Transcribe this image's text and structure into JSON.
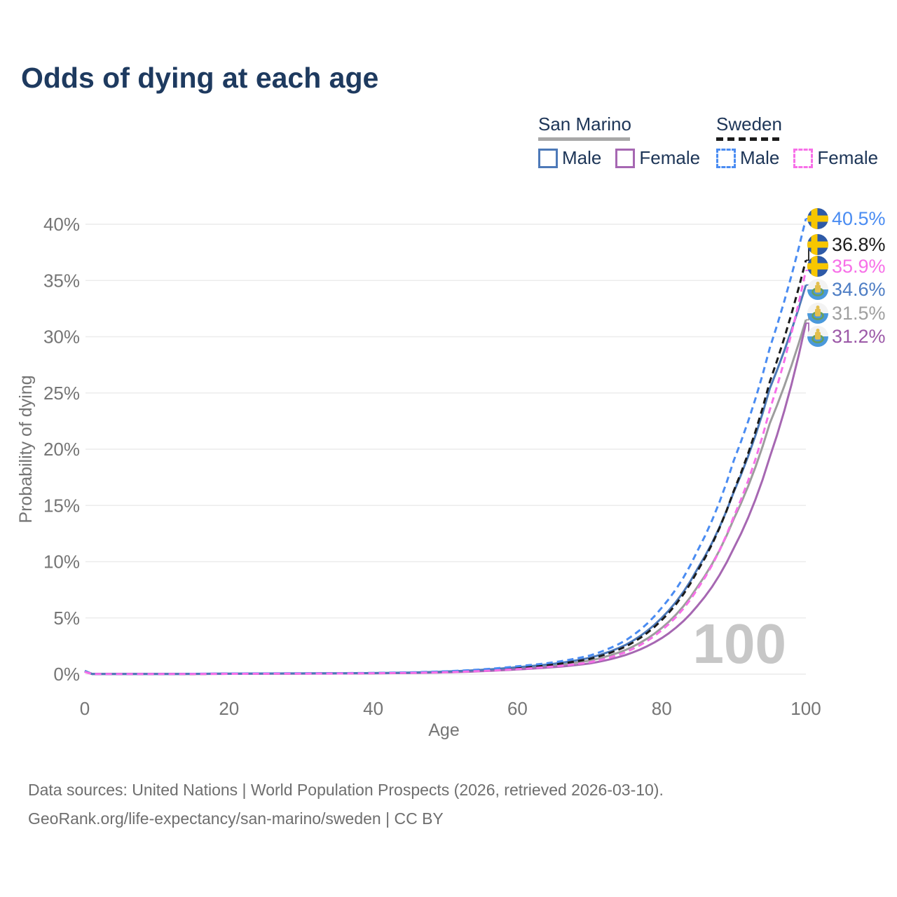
{
  "title": "Odds of dying at each age",
  "legend": {
    "groups": [
      {
        "name": "San Marino",
        "key": "sm-both",
        "line_style": "solid",
        "items": [
          {
            "label": "Male",
            "key": "sm-male"
          },
          {
            "label": "Female",
            "key": "sm-female"
          }
        ]
      },
      {
        "name": "Sweden",
        "key": "swe-both",
        "line_style": "dashed",
        "items": [
          {
            "label": "Male",
            "key": "swe-male"
          },
          {
            "label": "Female",
            "key": "swe-female"
          }
        ]
      }
    ]
  },
  "footer": {
    "line1": "Data sources: United Nations | World Population Prospects (2026, retrieved 2026-03-10).",
    "line2": "GeoRank.org/life-expectancy/san-marino/sweden | CC BY"
  },
  "chart_data": {
    "type": "line",
    "title": "Odds of dying at each age",
    "xlabel": "Age",
    "ylabel": "Probability of dying",
    "xlim": [
      0,
      100
    ],
    "ylim_pct": [
      0,
      40
    ],
    "x_ticks": [
      "0",
      "20",
      "40",
      "60",
      "80",
      "100"
    ],
    "x_tick_values": [
      0,
      20,
      40,
      60,
      80,
      100
    ],
    "y_ticks": [
      "0%",
      "5%",
      "10%",
      "15%",
      "20%",
      "25%",
      "30%",
      "35%",
      "40%"
    ],
    "y_tick_values": [
      0,
      5,
      10,
      15,
      20,
      25,
      30,
      35,
      40
    ],
    "grid": "horizontal-only",
    "age_ticker_watermark": "100",
    "x": [
      0,
      1,
      5,
      10,
      15,
      20,
      25,
      30,
      35,
      40,
      45,
      50,
      55,
      60,
      65,
      70,
      75,
      80,
      85,
      90,
      95,
      100
    ],
    "series": [
      {
        "key": "sm-both",
        "name": "San Marino",
        "sex": "Both sexes",
        "color": "#9d9d9d",
        "dashed": false,
        "end_label": "31.5%",
        "label_color": "#a0a0a0",
        "flag": "san-marino",
        "final_value_pct": 31.5,
        "values_pct": [
          0.28,
          0.02,
          0.01,
          0.01,
          0.02,
          0.04,
          0.05,
          0.06,
          0.07,
          0.09,
          0.12,
          0.19,
          0.32,
          0.52,
          0.78,
          1.2,
          2.15,
          4.1,
          7.8,
          13.8,
          22.3,
          31.5
        ]
      },
      {
        "key": "sm-female",
        "name": "San Marino",
        "sex": "Female",
        "color": "#a667b2",
        "dashed": false,
        "end_label": "31.2%",
        "label_color": "#9c59a8",
        "flag": "san-marino",
        "final_value_pct": 31.2,
        "values_pct": [
          0.25,
          0.02,
          0.01,
          0.01,
          0.02,
          0.03,
          0.04,
          0.05,
          0.06,
          0.08,
          0.1,
          0.16,
          0.26,
          0.42,
          0.62,
          0.95,
          1.7,
          3.2,
          6.1,
          11.2,
          19.3,
          31.2
        ]
      },
      {
        "key": "sm-male",
        "name": "San Marino",
        "sex": "Male",
        "color": "#4d79b8",
        "dashed": false,
        "end_label": "34.6%",
        "label_color": "#4d7dc4",
        "flag": "san-marino",
        "final_value_pct": 34.6,
        "values_pct": [
          0.3,
          0.02,
          0.01,
          0.01,
          0.03,
          0.05,
          0.06,
          0.07,
          0.08,
          0.1,
          0.14,
          0.23,
          0.38,
          0.62,
          0.92,
          1.45,
          2.6,
          5.0,
          9.4,
          16.2,
          25.4,
          34.6
        ]
      },
      {
        "key": "swe-both",
        "name": "Sweden",
        "sex": "Both sexes",
        "color": "#1c1c1c",
        "dashed": true,
        "end_label": "36.8%",
        "label_color": "#1c1c1c",
        "flag": "sweden",
        "final_value_pct": 36.8,
        "values_pct": [
          0.22,
          0.02,
          0.01,
          0.01,
          0.02,
          0.04,
          0.05,
          0.06,
          0.07,
          0.09,
          0.13,
          0.21,
          0.35,
          0.56,
          0.85,
          1.35,
          2.45,
          4.8,
          9.2,
          16.3,
          26.0,
          36.8
        ]
      },
      {
        "key": "swe-male",
        "name": "Sweden",
        "sex": "Male",
        "color": "#4a8cf2",
        "dashed": true,
        "end_label": "40.5%",
        "label_color": "#4a8cf2",
        "flag": "sweden",
        "final_value_pct": 40.5,
        "values_pct": [
          0.25,
          0.02,
          0.01,
          0.01,
          0.03,
          0.06,
          0.07,
          0.08,
          0.09,
          0.11,
          0.16,
          0.25,
          0.42,
          0.7,
          1.05,
          1.65,
          3.0,
          5.9,
          11.0,
          19.0,
          29.0,
          40.5
        ]
      },
      {
        "key": "swe-female",
        "name": "Sweden",
        "sex": "Female",
        "color": "#f76fe8",
        "dashed": true,
        "end_label": "35.9%",
        "label_color": "#f76fe8",
        "flag": "sweden",
        "final_value_pct": 35.9,
        "values_pct": [
          0.2,
          0.02,
          0.01,
          0.01,
          0.02,
          0.03,
          0.04,
          0.05,
          0.06,
          0.08,
          0.11,
          0.17,
          0.28,
          0.45,
          0.68,
          1.05,
          1.95,
          3.9,
          7.6,
          14.0,
          23.5,
          35.9
        ]
      }
    ],
    "flag_colors": {
      "sweden": {
        "field": "#2e5aa7",
        "cross": "#f7c600"
      },
      "san_marino": {
        "top": "#f3f3f3",
        "bottom": "#4a99dc",
        "emblem_gold": "#e3bf4d",
        "emblem_green": "#69a05a"
      }
    }
  }
}
